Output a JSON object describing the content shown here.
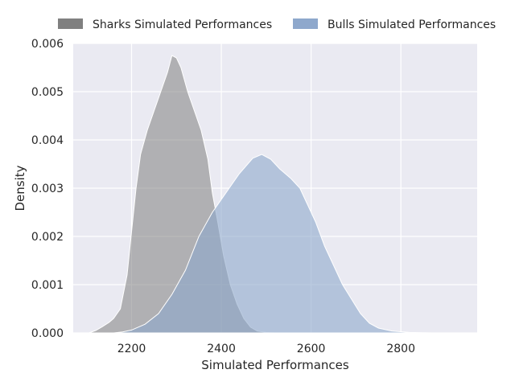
{
  "chart_data": {
    "type": "area",
    "xlabel": "Simulated Performances",
    "ylabel": "Density",
    "xlim": [
      2070,
      2970
    ],
    "ylim": [
      0,
      0.006
    ],
    "xticks": [
      2200,
      2400,
      2600,
      2800
    ],
    "yticks": [
      0.0,
      0.001,
      0.002,
      0.003,
      0.004,
      0.005,
      0.006
    ],
    "grid": true,
    "background": "#eaeaf2",
    "legend": {
      "placement": "top",
      "entries": [
        "Sharks Simulated Performances",
        "Bulls Simulated Performances"
      ]
    },
    "series": [
      {
        "name": "Sharks Simulated Performances",
        "color": "#808080",
        "fill_opacity": 0.55,
        "points": [
          [
            2105,
            0.0
          ],
          [
            2120,
            5e-05
          ],
          [
            2135,
            0.00013
          ],
          [
            2150,
            0.00022
          ],
          [
            2160,
            0.0003
          ],
          [
            2175,
            0.0005
          ],
          [
            2190,
            0.0012
          ],
          [
            2200,
            0.0021
          ],
          [
            2210,
            0.003
          ],
          [
            2220,
            0.0037
          ],
          [
            2235,
            0.0042
          ],
          [
            2250,
            0.0046
          ],
          [
            2265,
            0.005
          ],
          [
            2280,
            0.0054
          ],
          [
            2290,
            0.00575
          ],
          [
            2300,
            0.0057
          ],
          [
            2310,
            0.0055
          ],
          [
            2325,
            0.005
          ],
          [
            2340,
            0.0046
          ],
          [
            2355,
            0.0042
          ],
          [
            2370,
            0.0036
          ],
          [
            2380,
            0.0029
          ],
          [
            2392,
            0.0023
          ],
          [
            2405,
            0.0016
          ],
          [
            2420,
            0.001
          ],
          [
            2435,
            0.0006
          ],
          [
            2450,
            0.0003
          ],
          [
            2465,
            0.00012
          ],
          [
            2480,
            4e-05
          ],
          [
            2500,
            1e-05
          ],
          [
            2520,
            0.0
          ]
        ]
      },
      {
        "name": "Bulls Simulated Performances",
        "color": "#8ea8cc",
        "fill_opacity": 0.6,
        "points": [
          [
            2160,
            0.0
          ],
          [
            2180,
            2e-05
          ],
          [
            2200,
            6e-05
          ],
          [
            2230,
            0.00018
          ],
          [
            2260,
            0.0004
          ],
          [
            2290,
            0.0008
          ],
          [
            2320,
            0.0013
          ],
          [
            2350,
            0.002
          ],
          [
            2380,
            0.0025
          ],
          [
            2410,
            0.0029
          ],
          [
            2440,
            0.0033
          ],
          [
            2470,
            0.00362
          ],
          [
            2490,
            0.0037
          ],
          [
            2510,
            0.0036
          ],
          [
            2530,
            0.0034
          ],
          [
            2555,
            0.0032
          ],
          [
            2575,
            0.003
          ],
          [
            2590,
            0.0027
          ],
          [
            2610,
            0.0023
          ],
          [
            2630,
            0.0018
          ],
          [
            2650,
            0.0014
          ],
          [
            2670,
            0.001
          ],
          [
            2690,
            0.0007
          ],
          [
            2710,
            0.0004
          ],
          [
            2730,
            0.0002
          ],
          [
            2750,
            0.0001
          ],
          [
            2780,
            4e-05
          ],
          [
            2820,
            1e-05
          ],
          [
            2870,
            0.0
          ],
          [
            2940,
            0.0
          ]
        ]
      }
    ]
  }
}
